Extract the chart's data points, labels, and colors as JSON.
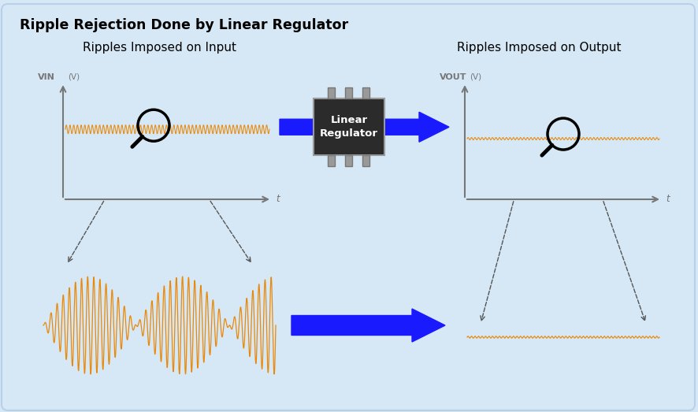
{
  "title": "Ripple Rejection Done by Linear Regulator",
  "title_fontsize": 12.5,
  "background_color": "#d6e8f5",
  "border_color": "#aaccdd",
  "left_subtitle": "Ripples Imposed on Input",
  "right_subtitle": "Ripples Imposed on Output",
  "subtitle_fontsize": 11,
  "vin_label": "VIN",
  "vout_label": "VOUT",
  "v_unit": "(V)",
  "t_label": "t",
  "orange_color": "#e8890c",
  "arrow_color": "#1a1aff",
  "axis_color": "#777777",
  "dashed_color": "#555555",
  "chip_bg": "#2b2b2b",
  "chip_pin_color": "#999999",
  "chip_text": "Linear\nRegulator",
  "chip_text_color": "#ffffff",
  "chip_fontsize": 9.5
}
